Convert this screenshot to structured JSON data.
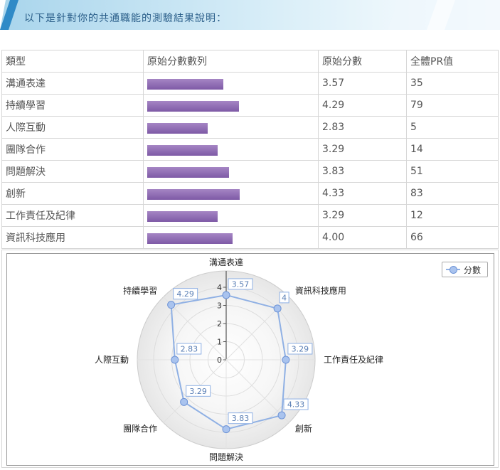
{
  "banner": {
    "text": "以下是針對你的共通職能的測驗結果說明："
  },
  "table": {
    "headers": [
      "類型",
      "原始分數數列",
      "原始分數",
      "全體PR值"
    ],
    "rows": [
      {
        "type": "溝通表達",
        "score": "3.57",
        "pr": "35",
        "value": 3.57
      },
      {
        "type": "持續學習",
        "score": "4.29",
        "pr": "79",
        "value": 4.29
      },
      {
        "type": "人際互動",
        "score": "2.83",
        "pr": "5",
        "value": 2.83
      },
      {
        "type": "團隊合作",
        "score": "3.29",
        "pr": "14",
        "value": 3.29
      },
      {
        "type": "問題解決",
        "score": "3.83",
        "pr": "51",
        "value": 3.83
      },
      {
        "type": "創新",
        "score": "4.33",
        "pr": "83",
        "value": 4.33
      },
      {
        "type": "工作責任及紀律",
        "score": "3.29",
        "pr": "12",
        "value": 3.29
      },
      {
        "type": "資訊科技應用",
        "score": "4.00",
        "pr": "66",
        "value": 4.0
      }
    ]
  },
  "chart_data": {
    "type": "radar",
    "categories": [
      "溝通表達",
      "資訊科技應用",
      "工作責任及紀律",
      "創新",
      "問題解決",
      "團隊合作",
      "人際互動",
      "持續學習"
    ],
    "series": [
      {
        "name": "分數",
        "values": [
          3.57,
          4.0,
          3.29,
          4.33,
          3.83,
          3.29,
          2.83,
          4.29
        ],
        "labels": [
          "3.57",
          "4",
          "3.29",
          "4.33",
          "3.83",
          "3.29",
          "2.83",
          "4.29"
        ]
      }
    ],
    "rlim": [
      0,
      5
    ],
    "radial_ticks": [
      "0",
      "1",
      "2",
      "3",
      "4"
    ],
    "legend": "top-right",
    "colors": {
      "line": "#8fb0e4",
      "marker": "#a9c3ee",
      "bar": "#8c68b2"
    }
  }
}
